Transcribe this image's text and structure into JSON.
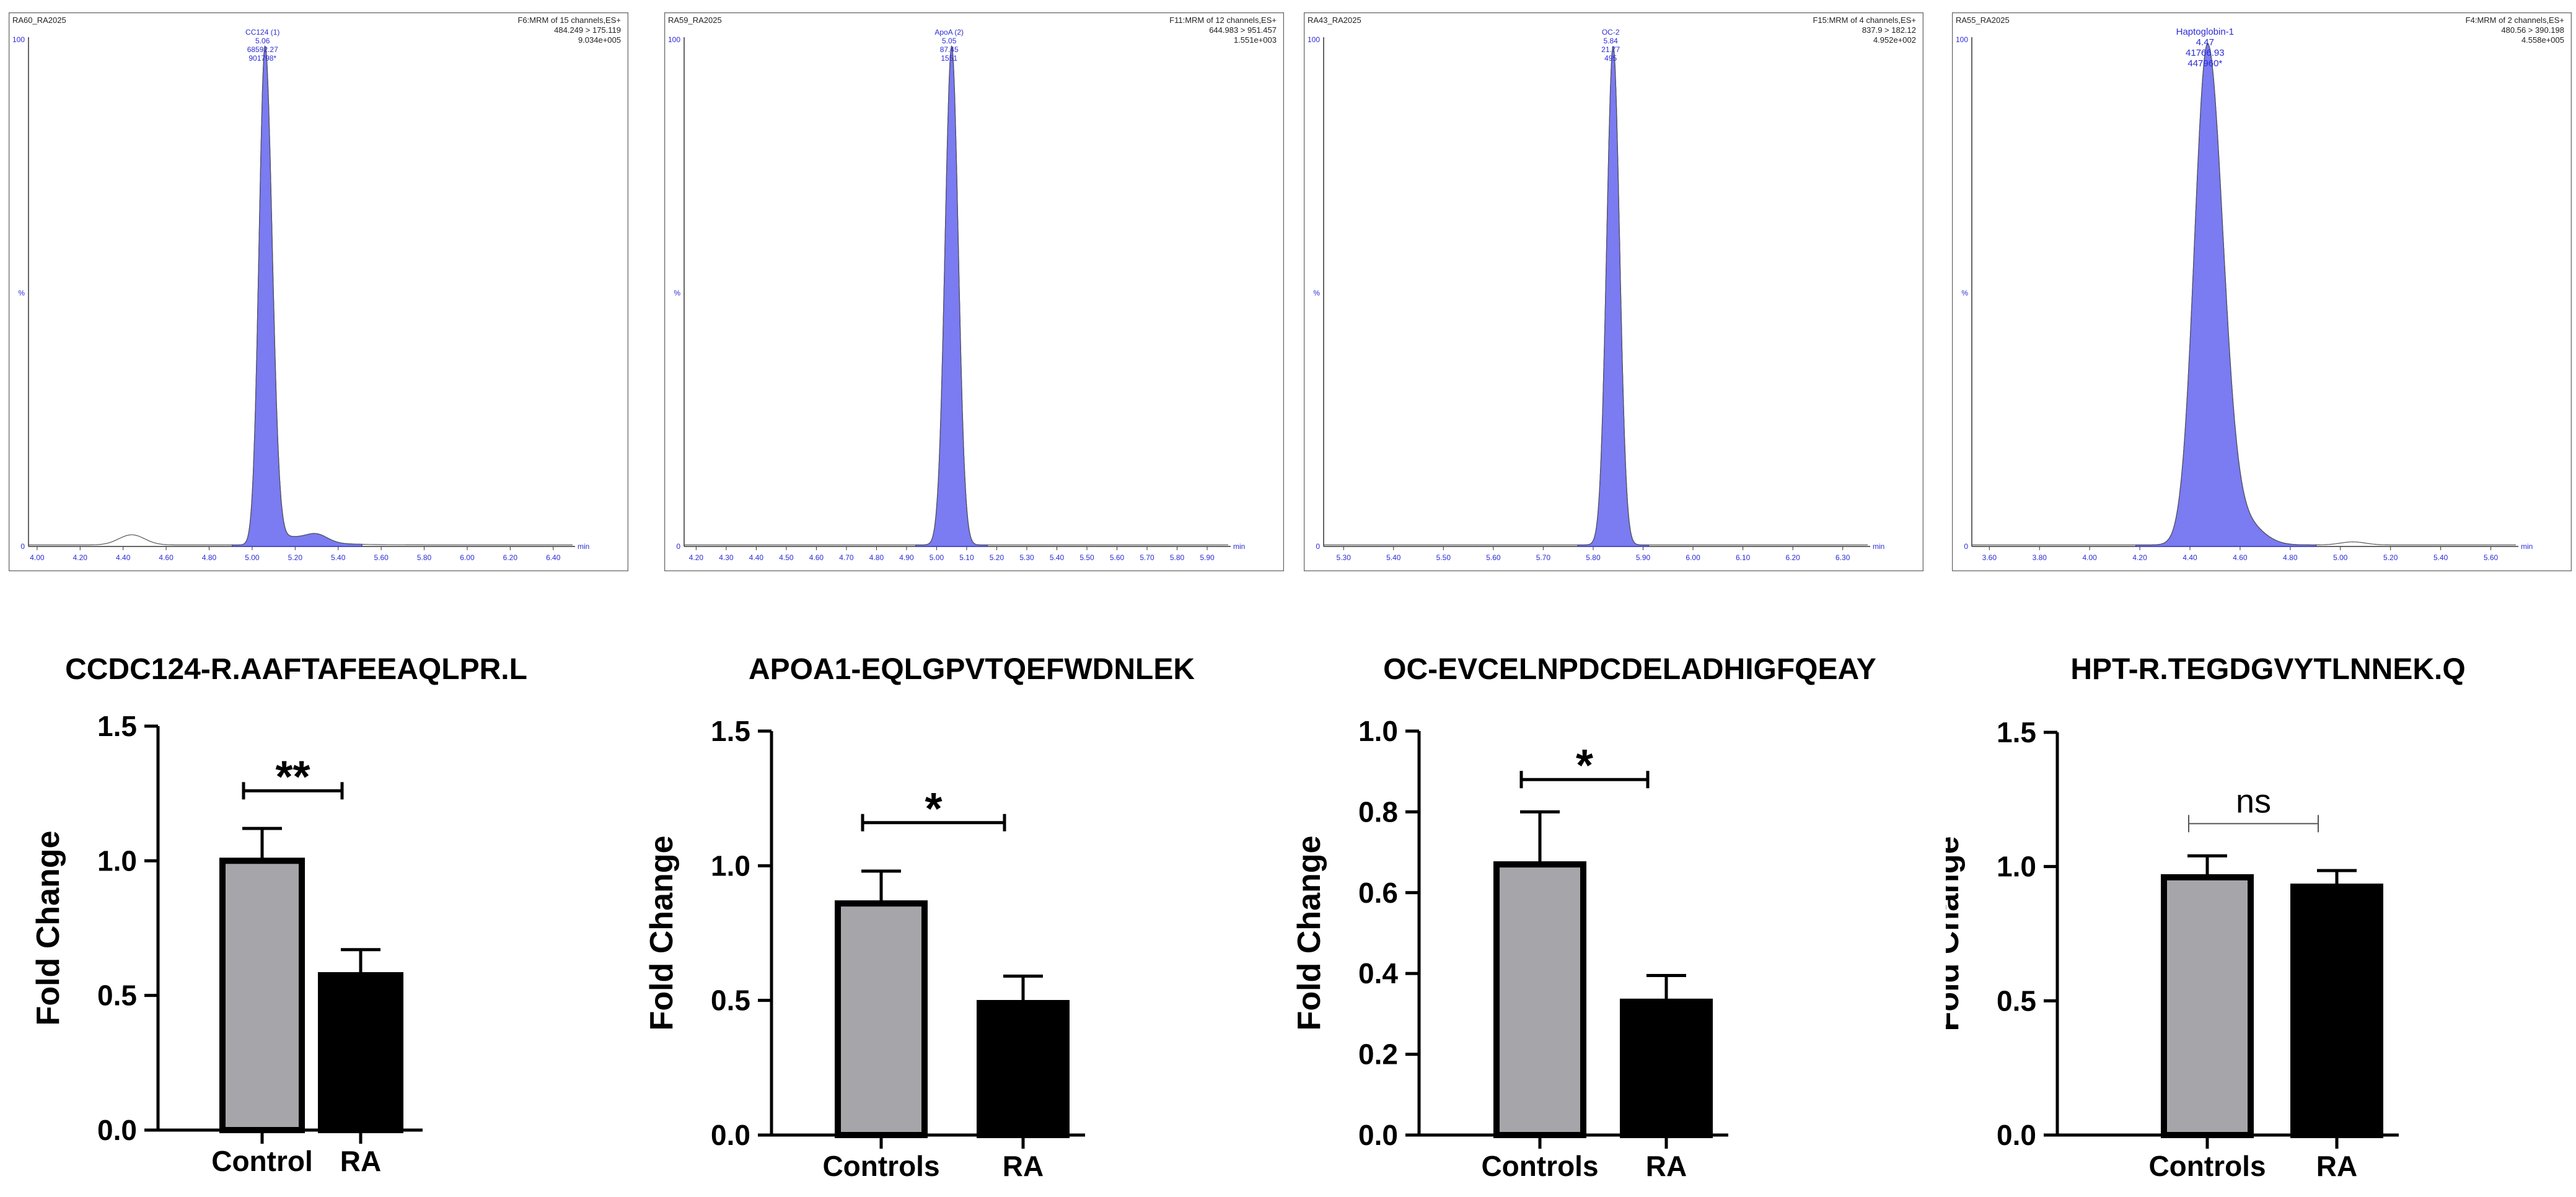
{
  "chromatograms": [
    {
      "sample": "RA60_RA2025",
      "channel": "F6:MRM of 15 channels,ES+",
      "transition": "484.249 > 175.119",
      "intensity": "9.034e+005",
      "peak_name": "CC124 (1)",
      "peak_rt": "5.06",
      "peak_area": "68592.27",
      "peak_height": "901798*",
      "y_top": "100",
      "y_mid": "%",
      "y_zero": "0",
      "x_unit": "min",
      "x_ticks": [
        "4.00",
        "4.20",
        "4.40",
        "4.60",
        "4.80",
        "5.00",
        "5.20",
        "5.40",
        "5.60",
        "5.80",
        "6.00",
        "6.20",
        "6.40"
      ],
      "x_min": 3.96,
      "x_max": 6.49,
      "peak_center": 5.06,
      "peak_sigma": 0.028,
      "peak_tail": 0.12,
      "baseline_bumps": [
        [
          4.44,
          0.02,
          0.06
        ],
        [
          5.3,
          0.015,
          0.05
        ]
      ]
    },
    {
      "sample": "RA59_RA2025",
      "channel": "F11:MRM of 12 channels,ES+",
      "transition": "644.983 > 951.457",
      "intensity": "1.551e+003",
      "peak_name": "ApoA (2)",
      "peak_rt": "5.05",
      "peak_area": "87.45",
      "peak_height": "1551",
      "y_top": "100",
      "y_mid": "%",
      "y_zero": "0",
      "x_unit": "min",
      "x_ticks": [
        "4.20",
        "4.30",
        "4.40",
        "4.50",
        "4.60",
        "4.70",
        "4.80",
        "4.90",
        "5.00",
        "5.10",
        "5.20",
        "5.30",
        "5.40",
        "5.50",
        "5.60",
        "5.70",
        "5.80",
        "5.90"
      ],
      "x_min": 4.16,
      "x_max": 5.97,
      "peak_center": 5.05,
      "peak_sigma": 0.022,
      "peak_tail": 0.0,
      "baseline_bumps": []
    },
    {
      "sample": "RA43_RA2025",
      "channel": "F15:MRM of 4 channels,ES+",
      "transition": "837.9 > 182.12",
      "intensity": "4.952e+002",
      "peak_name": "OC-2",
      "peak_rt": "5.84",
      "peak_area": "21.77",
      "peak_height": "495",
      "y_top": "100",
      "y_mid": "%",
      "y_zero": "0",
      "x_unit": "min",
      "x_ticks": [
        "5.30",
        "5.40",
        "5.50",
        "5.60",
        "5.70",
        "5.80",
        "5.90",
        "6.00",
        "6.10",
        "6.20",
        "6.30"
      ],
      "x_min": 5.26,
      "x_max": 6.35,
      "peak_center": 5.84,
      "peak_sigma": 0.013,
      "peak_tail": 0.0,
      "baseline_bumps": []
    },
    {
      "sample": "RA55_RA2025",
      "channel": "F4:MRM of 2 channels,ES+",
      "transition": "480.56 > 390.198",
      "intensity": "4.558e+005",
      "peak_name": "Haptoglobin-1",
      "peak_rt": "4.47",
      "peak_area": "41766.93",
      "peak_height": "447960*",
      "y_top": "100",
      "y_mid": "%",
      "y_zero": "0",
      "x_unit": "min",
      "x_ticks": [
        "3.60",
        "3.80",
        "4.00",
        "4.20",
        "4.40",
        "4.60",
        "4.80",
        "5.00",
        "5.20",
        "5.40",
        "5.60"
      ],
      "x_min": 3.53,
      "x_max": 5.7,
      "peak_center": 4.47,
      "peak_sigma": 0.052,
      "peak_tail": 0.06,
      "baseline_bumps": [
        [
          4.62,
          0.04,
          0.07
        ],
        [
          5.05,
          0.006,
          0.05
        ]
      ]
    }
  ],
  "chart_data": [
    {
      "type": "bar",
      "title": "CCDC124-R.AAFTAFEEAQLPR.L",
      "ylabel": "Fold Change",
      "categories": [
        "Control",
        "RA"
      ],
      "values": [
        1.0,
        0.575
      ],
      "errors": [
        0.12,
        0.095
      ],
      "colors": [
        "#a6a6aa",
        "#000000"
      ],
      "ylim": [
        0,
        1.5
      ],
      "yticks": [
        "0.0",
        "0.5",
        "1.0",
        "1.5"
      ],
      "significance": "**",
      "bracket_y": 1.26
    },
    {
      "type": "bar",
      "title": "APOA1-EQLGPVTQEFWDNLEK",
      "ylabel": "Fold Change",
      "categories": [
        "Controls",
        "RA"
      ],
      "values": [
        0.86,
        0.49
      ],
      "errors": [
        0.12,
        0.1
      ],
      "colors": [
        "#a6a6aa",
        "#000000"
      ],
      "ylim": [
        0,
        1.5
      ],
      "yticks": [
        "0.0",
        "0.5",
        "1.0",
        "1.5"
      ],
      "significance": "*",
      "bracket_y": 1.16
    },
    {
      "type": "bar",
      "title": "OC-EVCELNPDCDELADHIGFQEAY",
      "ylabel": "Fold Change",
      "categories": [
        "Controls",
        "RA"
      ],
      "values": [
        0.67,
        0.33
      ],
      "errors": [
        0.13,
        0.065
      ],
      "colors": [
        "#a6a6aa",
        "#000000"
      ],
      "ylim": [
        0,
        1.0
      ],
      "yticks": [
        "0.0",
        "0.2",
        "0.4",
        "0.6",
        "0.8",
        "1.0"
      ],
      "significance": "*",
      "bracket_y": 0.88
    },
    {
      "type": "bar",
      "title": "HPT-R.TEGDGVYTLNNEK.Q",
      "ylabel": "Fold Change",
      "categories": [
        "Controls",
        "RA"
      ],
      "values": [
        0.96,
        0.925
      ],
      "errors": [
        0.08,
        0.06
      ],
      "colors": [
        "#a6a6aa",
        "#000000"
      ],
      "ylim": [
        0,
        1.5
      ],
      "yticks": [
        "0.0",
        "0.5",
        "1.0",
        "1.5"
      ],
      "significance": "ns",
      "bracket_y": 1.16
    }
  ]
}
